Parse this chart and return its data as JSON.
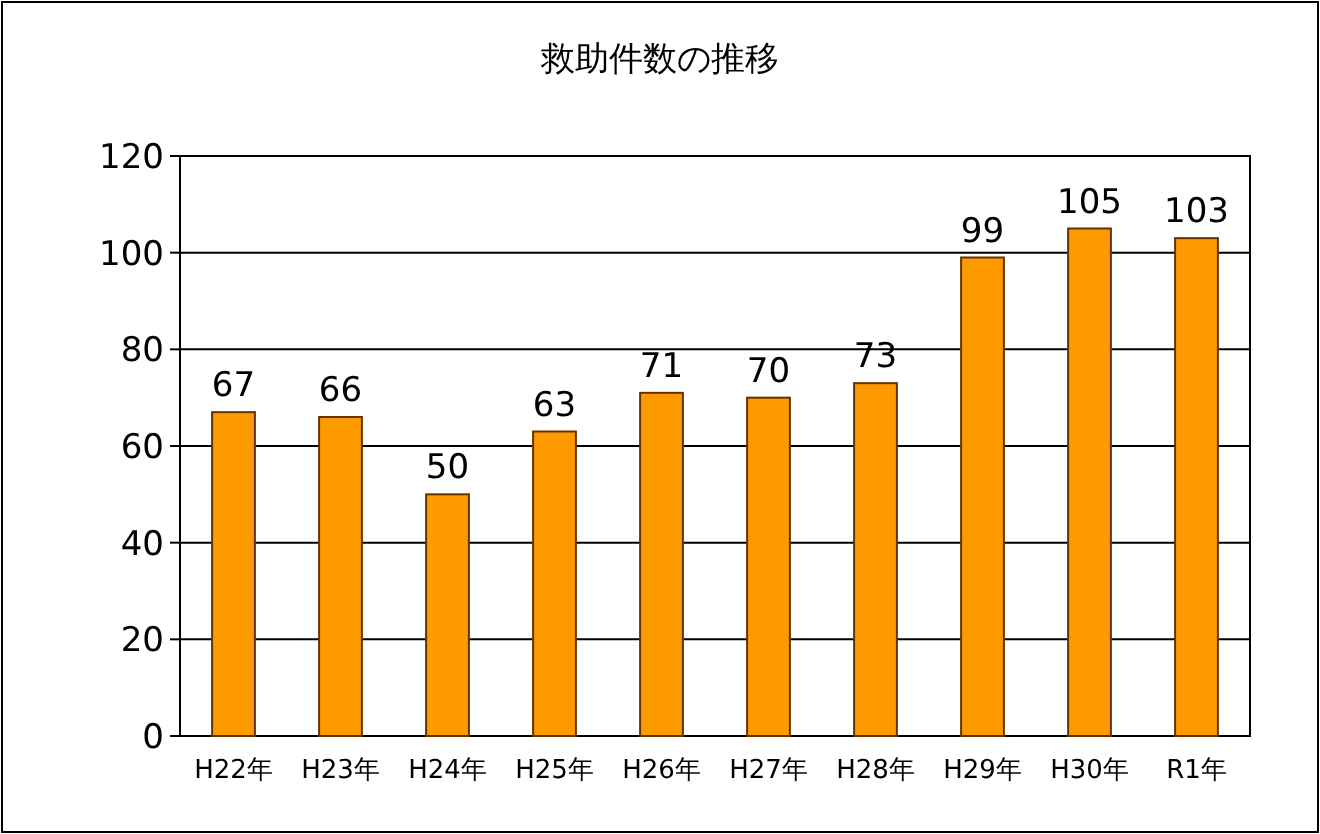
{
  "chart_data": {
    "type": "bar",
    "title": "救助件数の推移",
    "categories": [
      "H22年",
      "H23年",
      "H24年",
      "H25年",
      "H26年",
      "H27年",
      "H28年",
      "H29年",
      "H30年",
      "R1年"
    ],
    "values": [
      67,
      66,
      50,
      63,
      71,
      70,
      73,
      99,
      105,
      103
    ],
    "color": "#ff9900",
    "ylim": [
      0,
      120
    ],
    "yticks": [
      0,
      20,
      40,
      60,
      80,
      100,
      120
    ],
    "grid": "y",
    "data_labels": true
  }
}
